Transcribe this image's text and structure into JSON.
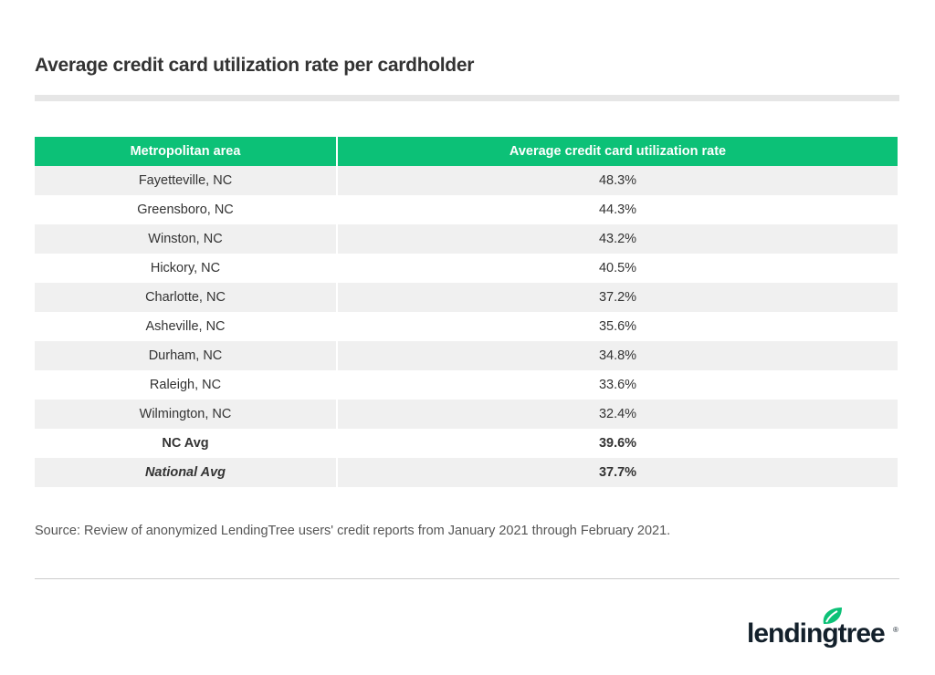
{
  "title": "Average credit card utilization rate per cardholder",
  "chart_data": {
    "type": "table",
    "title": "Average credit card utilization rate per cardholder",
    "columns": [
      "Metropolitan area",
      "Average credit card utilization rate"
    ],
    "rows": [
      [
        "Fayetteville, NC",
        "48.3%"
      ],
      [
        "Greensboro, NC",
        "44.3%"
      ],
      [
        "Winston, NC",
        "43.2%"
      ],
      [
        "Hickory, NC",
        "40.5%"
      ],
      [
        "Charlotte, NC",
        "37.2%"
      ],
      [
        "Asheville, NC",
        "35.6%"
      ],
      [
        "Durham, NC",
        "34.8%"
      ],
      [
        "Raleigh, NC",
        "33.6%"
      ],
      [
        "Wilmington, NC",
        "32.4%"
      ],
      [
        "NC Avg",
        "39.6%"
      ],
      [
        "National Avg",
        "37.7%"
      ]
    ]
  },
  "source": "Source: Review of anonymized LendingTree users' credit reports from January 2021 through February 2021.",
  "logo": {
    "text": "lendingtree",
    "mark": "®"
  },
  "colors": {
    "header": "#0cc177",
    "stripe": "#f0f0f0"
  }
}
